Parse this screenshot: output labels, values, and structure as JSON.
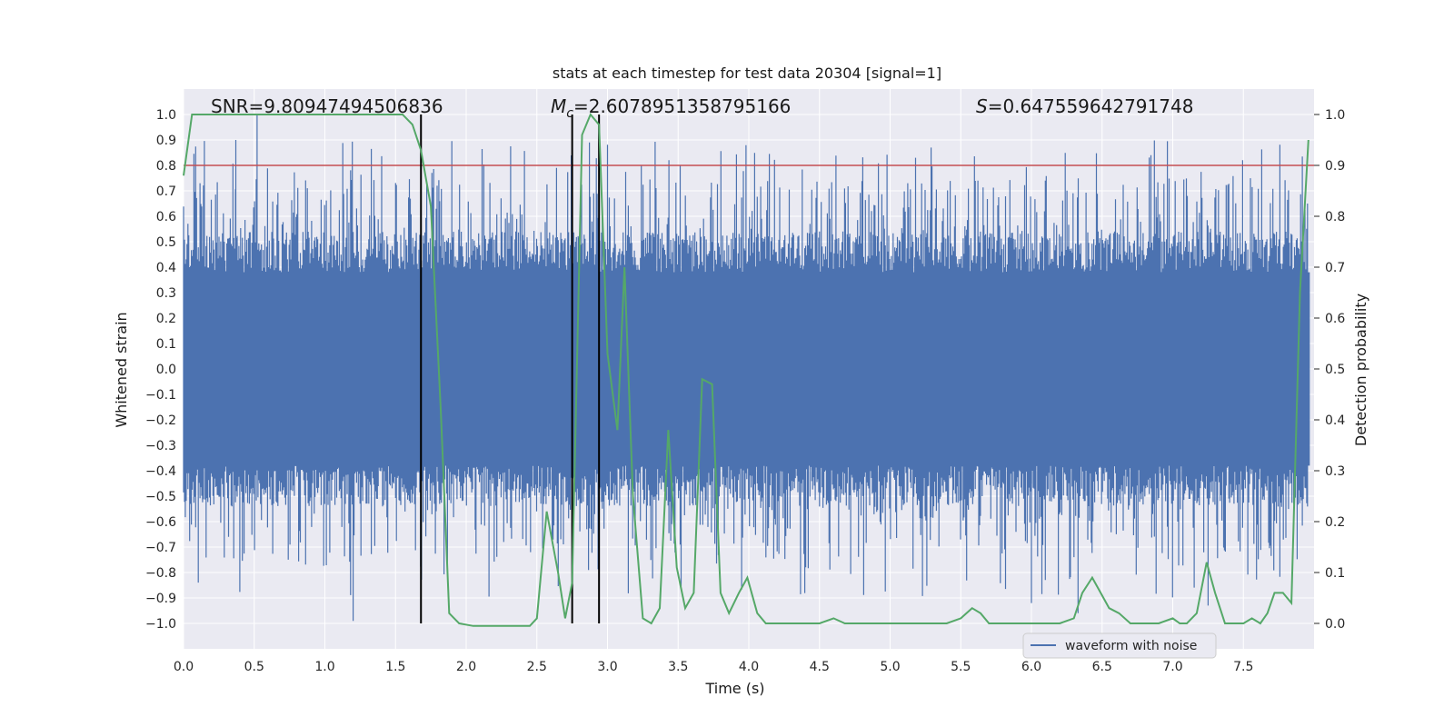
{
  "chart_data": {
    "type": "line",
    "title": "stats at each timestep for test data 20304 [signal=1]",
    "xlabel": "Time (s)",
    "ylabel": "Whitened strain",
    "y2label": "Detection probability",
    "xlim": [
      0.0,
      8.0
    ],
    "ylim": [
      -1.1,
      1.1
    ],
    "y2lim": [
      -0.05,
      1.05
    ],
    "xticks": [
      0.0,
      0.5,
      1.0,
      1.5,
      2.0,
      2.5,
      3.0,
      3.5,
      4.0,
      4.5,
      5.0,
      5.5,
      6.0,
      6.5,
      7.0,
      7.5
    ],
    "yticks": [
      -1.0,
      -0.9,
      -0.8,
      -0.7,
      -0.6,
      -0.5,
      -0.4,
      -0.3,
      -0.2,
      -0.1,
      0.0,
      0.1,
      0.2,
      0.3,
      0.4,
      0.5,
      0.6,
      0.7,
      0.8,
      0.9,
      1.0
    ],
    "y2ticks": [
      0.0,
      0.1,
      0.2,
      0.3,
      0.4,
      0.5,
      0.6,
      0.7,
      0.8,
      0.9,
      1.0
    ],
    "grid": true,
    "annotations": {
      "snr": "SNR=9.80947494506836",
      "mc": "=2.6078951358795166",
      "mc_symbol": "M",
      "mc_subscript": "c",
      "s": "=0.647559642791748",
      "s_symbol": "S"
    },
    "threshold": {
      "value": 0.9,
      "axis": "y2",
      "color": "#c44e52"
    },
    "vlines": [
      1.68,
      2.75,
      2.94
    ],
    "series": [
      {
        "name": "waveform with noise",
        "color": "#4c72b0",
        "description_envelope": {
          "core": 0.38,
          "spike_max": 0.9,
          "min": -0.99,
          "max": 1.0
        }
      },
      {
        "name": "detection probability",
        "color": "#55a868",
        "axis": "y2",
        "x": [
          0.0,
          0.06,
          0.2,
          0.4,
          0.6,
          0.8,
          1.0,
          1.2,
          1.4,
          1.55,
          1.62,
          1.68,
          1.75,
          1.82,
          1.88,
          1.95,
          2.05,
          2.15,
          2.3,
          2.45,
          2.5,
          2.57,
          2.65,
          2.7,
          2.75,
          2.82,
          2.88,
          2.94,
          3.0,
          3.07,
          3.12,
          3.18,
          3.25,
          3.31,
          3.37,
          3.43,
          3.49,
          3.55,
          3.61,
          3.67,
          3.74,
          3.8,
          3.86,
          3.93,
          3.99,
          4.06,
          4.12,
          4.3,
          4.5,
          4.6,
          4.68,
          4.75,
          4.85,
          5.0,
          5.2,
          5.4,
          5.5,
          5.58,
          5.64,
          5.7,
          5.76,
          5.82,
          5.9,
          6.0,
          6.1,
          6.2,
          6.3,
          6.36,
          6.43,
          6.49,
          6.55,
          6.62,
          6.7,
          6.8,
          6.9,
          7.0,
          7.05,
          7.1,
          7.17,
          7.24,
          7.3,
          7.37,
          7.43,
          7.5,
          7.56,
          7.62,
          7.67,
          7.72,
          7.78,
          7.84,
          7.9,
          7.96
        ],
        "y": [
          0.88,
          1.0,
          1.0,
          1.0,
          1.0,
          1.0,
          1.0,
          1.0,
          1.0,
          1.0,
          0.98,
          0.93,
          0.82,
          0.42,
          0.02,
          0.0,
          -0.005,
          -0.005,
          -0.005,
          -0.005,
          0.01,
          0.22,
          0.1,
          0.01,
          0.08,
          0.96,
          1.0,
          0.98,
          0.53,
          0.38,
          0.7,
          0.25,
          0.01,
          0.0,
          0.03,
          0.38,
          0.11,
          0.03,
          0.06,
          0.48,
          0.47,
          0.06,
          0.02,
          0.06,
          0.09,
          0.02,
          0.0,
          0.0,
          0.0,
          0.01,
          0.0,
          0.0,
          0.0,
          0.0,
          0.0,
          0.0,
          0.01,
          0.03,
          0.02,
          0.0,
          0.0,
          0.0,
          0.0,
          0.0,
          0.0,
          0.0,
          0.01,
          0.06,
          0.09,
          0.06,
          0.03,
          0.02,
          0.0,
          0.0,
          0.0,
          0.01,
          0.0,
          0.0,
          0.02,
          0.12,
          0.06,
          0.0,
          0.0,
          0.0,
          0.01,
          0.0,
          0.02,
          0.06,
          0.06,
          0.04,
          0.65,
          0.95
        ]
      }
    ],
    "legend": {
      "placement": "lower-right",
      "label": "waveform with noise"
    }
  }
}
